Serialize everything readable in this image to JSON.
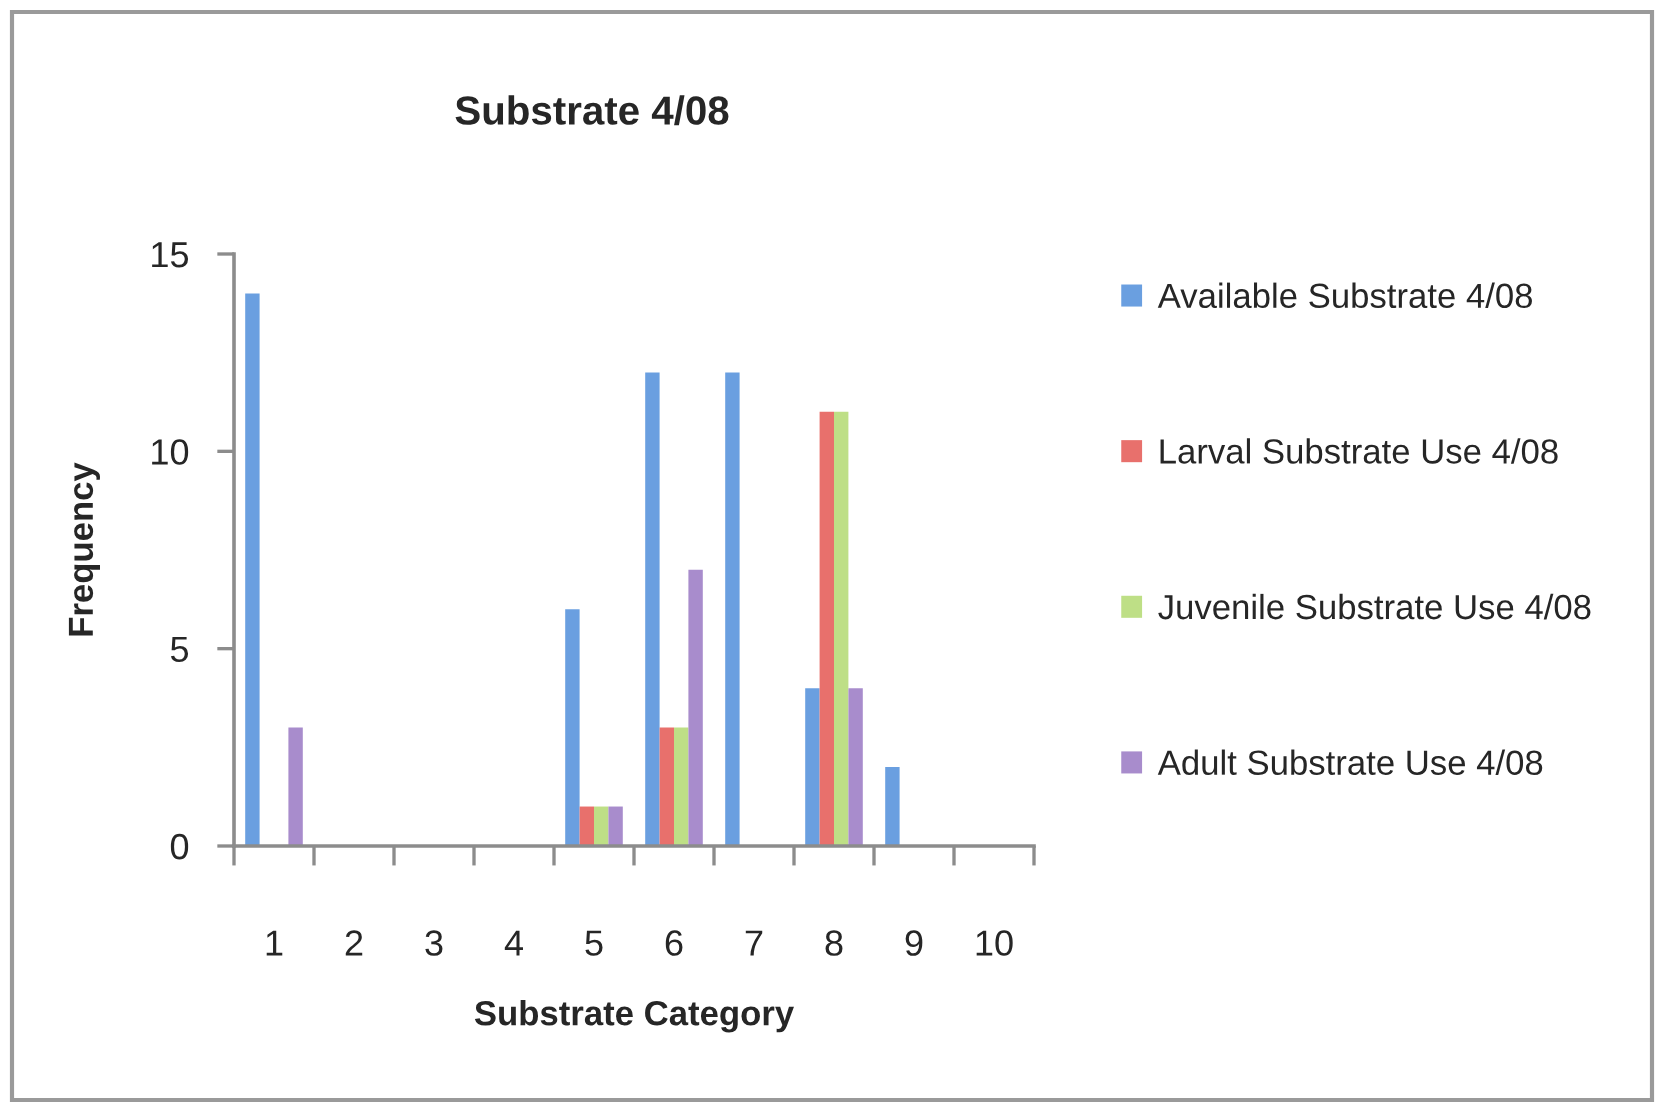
{
  "chart_data": {
    "type": "bar",
    "title": "Substrate 4/08",
    "xlabel": "Substrate Category",
    "ylabel": "Frequency",
    "categories": [
      "1",
      "2",
      "3",
      "4",
      "5",
      "6",
      "7",
      "8",
      "9",
      "10"
    ],
    "series": [
      {
        "name": "Available Substrate 4/08",
        "color": "#6a9fe0",
        "values": [
          14,
          0,
          0,
          0,
          6,
          12,
          12,
          4,
          2,
          0
        ]
      },
      {
        "name": "Larval Substrate Use 4/08",
        "color": "#e8706c",
        "values": [
          0,
          0,
          0,
          0,
          1,
          3,
          0,
          11,
          0,
          0
        ]
      },
      {
        "name": "Juvenile Substrate Use 4/08",
        "color": "#bedf86",
        "values": [
          0,
          0,
          0,
          0,
          1,
          3,
          0,
          11,
          0,
          0
        ]
      },
      {
        "name": "Adult Substrate Use 4/08",
        "color": "#a88ccc",
        "values": [
          3,
          0,
          0,
          0,
          1,
          7,
          0,
          4,
          0,
          0
        ]
      }
    ],
    "ylim": [
      0,
      15
    ],
    "yticks": [
      0,
      5,
      10,
      15
    ],
    "legend": "right"
  }
}
